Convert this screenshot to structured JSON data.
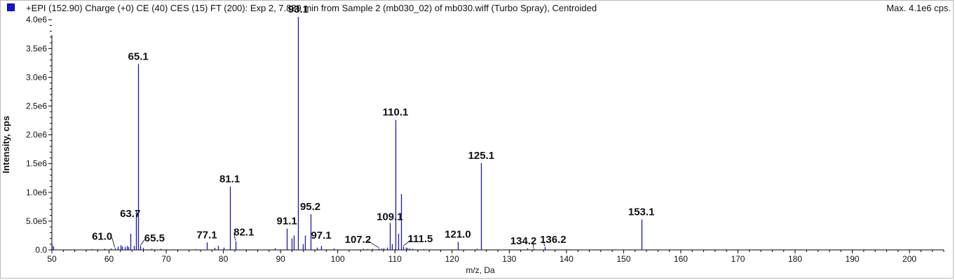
{
  "header": {
    "spectrum_title": "+EPI (152.90) Charge (+0) CE (40) CES (15) FT (200): Exp 2, 7.839 min from Sample 2 (mb030_02) of mb030.wiff (Turbo Spray), Centroided",
    "max_intensity": "Max. 4.1e6 cps."
  },
  "colors": {
    "series": "#1a1ab4",
    "axis": "#000000",
    "legend_swatch": "#1414d2"
  },
  "chart_data": {
    "type": "bar",
    "title": "",
    "xlabel": "m/z, Da",
    "ylabel": "Intensity, cps",
    "xlim": [
      50,
      206
    ],
    "ylim": [
      0,
      4100000.0
    ],
    "x_ticks": [
      50,
      60,
      70,
      80,
      90,
      100,
      110,
      120,
      130,
      140,
      150,
      160,
      170,
      180,
      190,
      200
    ],
    "x_tick_labels": [
      "50",
      "60",
      "70",
      "80",
      "90",
      "100",
      "110",
      "120",
      "130",
      "140",
      "150",
      "160",
      "170",
      "180",
      "190",
      "200"
    ],
    "y_ticks": [
      0,
      500000,
      1000000,
      1500000,
      2000000,
      2500000,
      3000000,
      3500000,
      4000000
    ],
    "y_tick_labels": [
      "0.0",
      "5.0e5",
      "1.0e6",
      "1.5e6",
      "2.0e6",
      "2.5e6",
      "3.0e6",
      "3.5e6",
      "4.0e6"
    ],
    "grid": false,
    "series": [
      {
        "x": [
          50.0,
          50.2,
          57.0,
          59.2,
          60.3,
          61.0,
          61.5,
          62.0,
          62.3,
          62.8,
          63.1,
          63.4,
          63.7,
          64.4,
          64.7,
          65.1,
          65.5,
          66.0,
          67.4,
          69.0,
          75.2,
          77.1,
          78.5,
          79.1,
          80.0,
          81.1,
          82.1,
          89.0,
          91.1,
          91.9,
          92.3,
          93.1,
          93.9,
          94.3,
          95.2,
          96.4,
          97.1,
          99.3,
          104.5,
          105.2,
          106.0,
          107.2,
          107.6,
          108.0,
          108.6,
          109.1,
          109.5,
          110.1,
          110.6,
          111.1,
          111.5,
          111.9,
          112.2,
          112.6,
          113.0,
          115.0,
          121.0,
          124.3,
          125.1,
          133.1,
          134.2,
          136.2,
          153.1
        ],
        "values": [
          90000,
          60000,
          15000,
          20000,
          25000,
          30000,
          55000,
          80000,
          60000,
          50000,
          70000,
          50000,
          280000,
          70000,
          680000,
          3230000,
          70000,
          35000,
          20000,
          20000,
          15000,
          130000,
          35000,
          70000,
          40000,
          1100000,
          150000,
          30000,
          370000,
          200000,
          250000,
          4050000,
          100000,
          250000,
          620000,
          40000,
          70000,
          25000,
          20000,
          15000,
          20000,
          25000,
          25000,
          30000,
          40000,
          470000,
          100000,
          2260000,
          280000,
          970000,
          60000,
          40000,
          30000,
          25000,
          20000,
          15000,
          140000,
          20000,
          1510000,
          30000,
          25000,
          50000,
          530000
        ]
      }
    ],
    "peak_labels": [
      {
        "text": "61.0",
        "x": 61.0
      },
      {
        "text": "63.7",
        "x": 63.7
      },
      {
        "text": "65.1",
        "x": 65.1
      },
      {
        "text": "65.5",
        "x": 65.5
      },
      {
        "text": "77.1",
        "x": 77.1
      },
      {
        "text": "81.1",
        "x": 81.1
      },
      {
        "text": "82.1",
        "x": 82.1
      },
      {
        "text": "91.1",
        "x": 91.1
      },
      {
        "text": "93.1",
        "x": 93.1
      },
      {
        "text": "95.2",
        "x": 95.2
      },
      {
        "text": "97.1",
        "x": 97.1
      },
      {
        "text": "107.2",
        "x": 107.2
      },
      {
        "text": "109.1",
        "x": 109.1
      },
      {
        "text": "110.1",
        "x": 110.1
      },
      {
        "text": "111.5",
        "x": 111.5
      },
      {
        "text": "121.0",
        "x": 121.0
      },
      {
        "text": "125.1",
        "x": 125.1
      },
      {
        "text": "134.2",
        "x": 134.2
      },
      {
        "text": "136.2",
        "x": 136.2
      },
      {
        "text": "153.1",
        "x": 153.1
      }
    ]
  }
}
